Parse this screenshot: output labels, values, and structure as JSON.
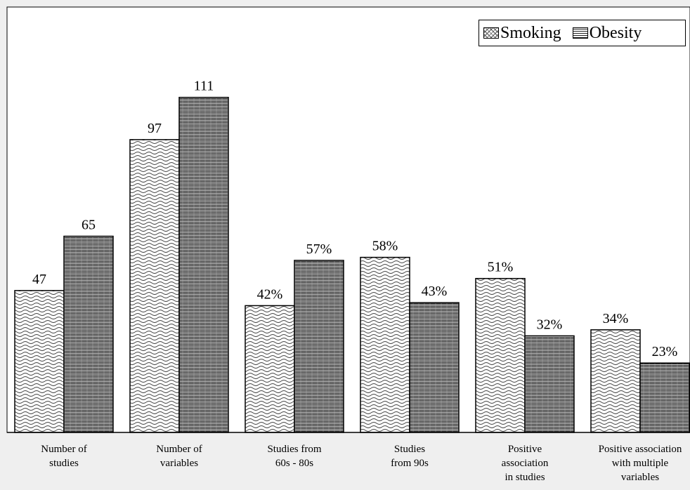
{
  "chart_data": {
    "type": "bar",
    "categories": [
      "Number of studies",
      "Number of variables",
      "Studies from 60s - 80s",
      "Studies from 90s",
      "Positive association in studies",
      "Positive association with multiple variables"
    ],
    "category_lines": [
      [
        "Number of",
        "studies"
      ],
      [
        "Number of",
        "variables"
      ],
      [
        "Studies from",
        "60s - 80s"
      ],
      [
        "Studies",
        "from 90s"
      ],
      [
        "Positive",
        "association",
        "in studies"
      ],
      [
        "Positive association",
        "with multiple",
        "variables"
      ]
    ],
    "series": [
      {
        "name": "Smoking",
        "values": [
          47,
          97,
          42,
          58,
          51,
          34
        ],
        "labels": [
          "47",
          "97",
          "42%",
          "58%",
          "51%",
          "34%"
        ]
      },
      {
        "name": "Obesity",
        "values": [
          65,
          111,
          57,
          43,
          32,
          23
        ],
        "labels": [
          "65",
          "111",
          "57%",
          "43%",
          "32%",
          "23%"
        ]
      }
    ],
    "ylim": [
      0,
      130
    ],
    "legend_position": "top-right",
    "grid": false
  },
  "colors": {
    "background": "#efefef",
    "plot_background": "#ffffff",
    "bar_fill": "#ffffff",
    "bar_stroke": "#000000"
  }
}
